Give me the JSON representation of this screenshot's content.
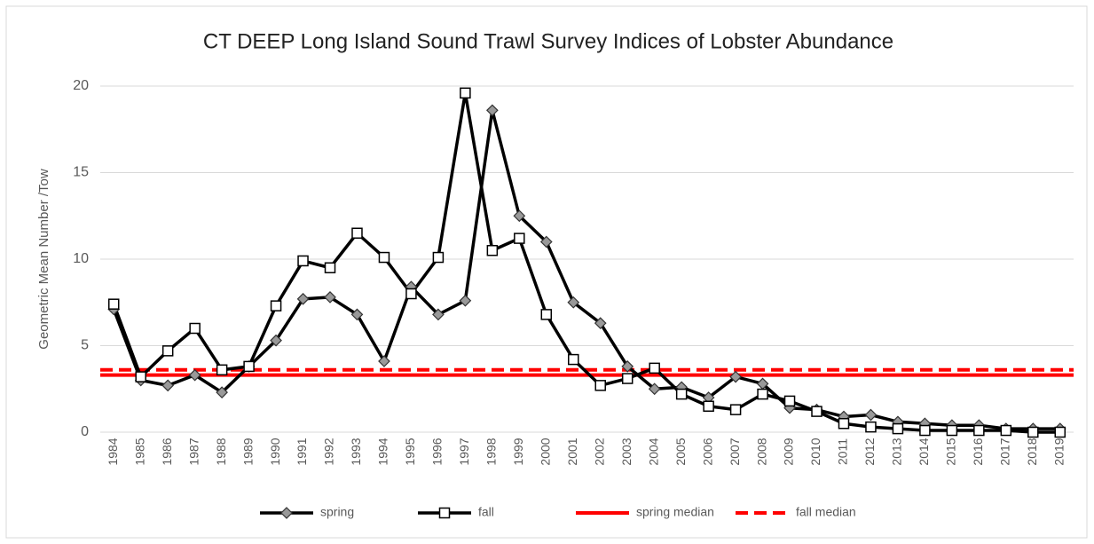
{
  "chart_data": {
    "type": "line",
    "title": "CT DEEP Long Island Sound Trawl Survey Indices of Lobster Abundance",
    "y_label": "Geometric Mean Number /Tow",
    "categories": [
      "1984",
      "1985",
      "1986",
      "1987",
      "1988",
      "1989",
      "1990",
      "1991",
      "1992",
      "1993",
      "1994",
      "1995",
      "1996",
      "1997",
      "1998",
      "1999",
      "2000",
      "2001",
      "2002",
      "2003",
      "2004",
      "2005",
      "2006",
      "2007",
      "2008",
      "2009",
      "2010",
      "2011",
      "2012",
      "2013",
      "2014",
      "2015",
      "2016",
      "2017",
      "2018",
      "2019"
    ],
    "series": [
      {
        "name": "spring",
        "color": "#000000",
        "marker": "diamond",
        "values": [
          7.1,
          3.0,
          2.7,
          3.3,
          2.3,
          3.8,
          5.3,
          7.7,
          7.8,
          6.8,
          4.1,
          8.4,
          6.8,
          7.6,
          18.6,
          12.5,
          11.0,
          7.5,
          6.3,
          3.8,
          2.5,
          2.6,
          2.0,
          3.2,
          2.8,
          1.4,
          1.3,
          0.9,
          1.0,
          0.6,
          0.5,
          0.4,
          0.4,
          0.2,
          0.2,
          0.2
        ]
      },
      {
        "name": "fall",
        "color": "#000000",
        "marker": "square",
        "values": [
          7.4,
          3.2,
          4.7,
          6.0,
          3.6,
          3.8,
          7.3,
          9.9,
          9.5,
          11.5,
          10.1,
          8.0,
          10.1,
          19.6,
          10.5,
          11.2,
          6.8,
          4.2,
          2.7,
          3.1,
          3.7,
          2.2,
          1.5,
          1.3,
          2.2,
          1.8,
          1.2,
          0.5,
          0.3,
          0.2,
          0.1,
          0.1,
          0.1,
          0.1,
          0.0,
          0.0
        ]
      }
    ],
    "medians": [
      {
        "name": "spring median",
        "value": 3.3,
        "color": "#ff0000",
        "style": "solid"
      },
      {
        "name": "fall median",
        "value": 3.6,
        "color": "#ff0000",
        "style": "dashed"
      }
    ],
    "ylim": [
      0,
      20
    ],
    "yticks": [
      0,
      5,
      10,
      15,
      20
    ],
    "grid": true
  }
}
